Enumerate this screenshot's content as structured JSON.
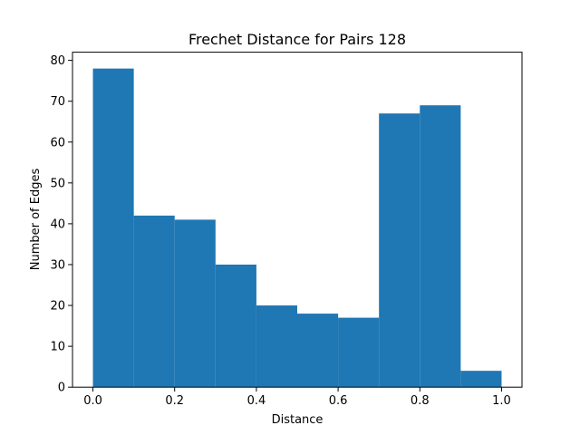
{
  "chart_data": {
    "type": "bar",
    "title": "Frechet Distance for Pairs 128",
    "xlabel": "Distance",
    "ylabel": "Number of Edges",
    "bins": [
      {
        "x0": 0.0,
        "x1": 0.1,
        "count": 78
      },
      {
        "x0": 0.1,
        "x1": 0.2,
        "count": 42
      },
      {
        "x0": 0.2,
        "x1": 0.3,
        "count": 41
      },
      {
        "x0": 0.3,
        "x1": 0.4,
        "count": 30
      },
      {
        "x0": 0.4,
        "x1": 0.5,
        "count": 20
      },
      {
        "x0": 0.5,
        "x1": 0.6,
        "count": 18
      },
      {
        "x0": 0.6,
        "x1": 0.7,
        "count": 17
      },
      {
        "x0": 0.7,
        "x1": 0.8,
        "count": 67
      },
      {
        "x0": 0.8,
        "x1": 0.9,
        "count": 69
      },
      {
        "x0": 0.9,
        "x1": 1.0,
        "count": 4
      }
    ],
    "xlim": [
      -0.05,
      1.05
    ],
    "ylim": [
      0,
      82
    ],
    "xticks": [
      0.0,
      0.2,
      0.4,
      0.6,
      0.8,
      1.0
    ],
    "xtick_labels": [
      "0.0",
      "0.2",
      "0.4",
      "0.6",
      "0.8",
      "1.0"
    ],
    "yticks": [
      0,
      10,
      20,
      30,
      40,
      50,
      60,
      70,
      80
    ],
    "ytick_labels": [
      "0",
      "10",
      "20",
      "30",
      "40",
      "50",
      "60",
      "70",
      "80"
    ],
    "bar_color": "#1f77b4",
    "grid": false
  }
}
